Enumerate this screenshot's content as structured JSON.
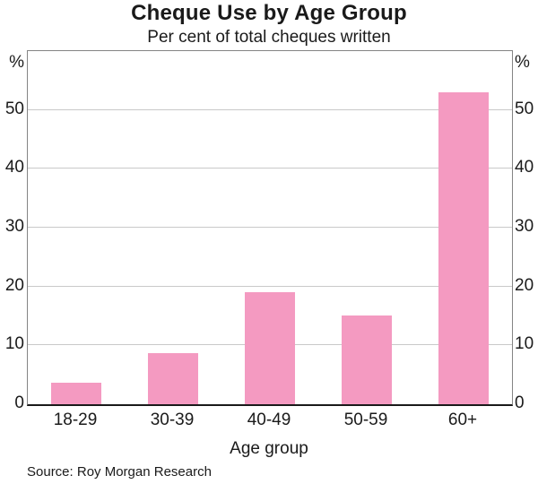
{
  "chart_data": {
    "type": "bar",
    "title": "Cheque Use by Age Group",
    "subtitle": "Per cent of total cheques written",
    "categories": [
      "18-29",
      "30-39",
      "40-49",
      "50-59",
      "60+"
    ],
    "values": [
      3.7,
      8.7,
      19,
      15,
      53
    ],
    "xlabel": "Age group",
    "ylabel_left": "%",
    "ylabel_right": "%",
    "ylim": [
      0,
      60
    ],
    "yticks": [
      0,
      10,
      20,
      30,
      40,
      50
    ],
    "grid": "horizontal",
    "legend": "none",
    "bar_color": "#f49ac1",
    "gridline_color": "#c9c9c9",
    "axis_color": "#848484",
    "baseline_color": "#1a1a1a",
    "source": "Source: Roy Morgan Research"
  }
}
